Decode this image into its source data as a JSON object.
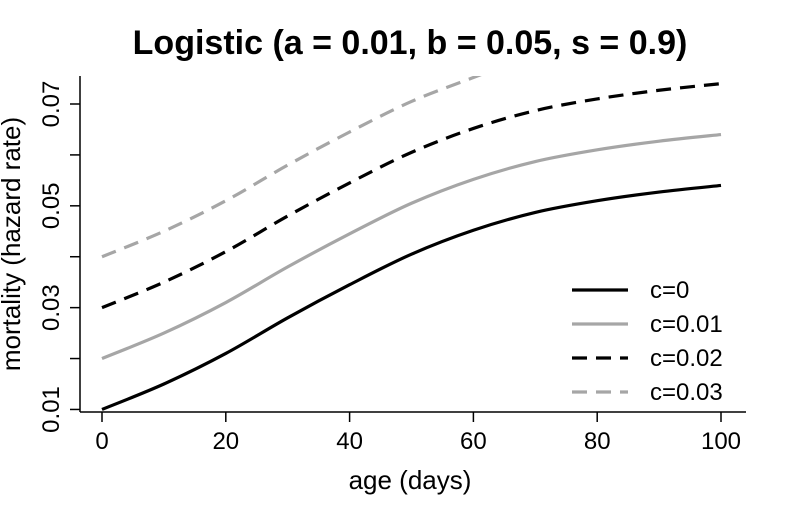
{
  "chart_data": {
    "type": "line",
    "title": "Logistic (a = 0.01, b = 0.05, s = 0.9)",
    "xlabel": "age (days)",
    "ylabel": "mortality (hazard rate)",
    "xlim": [
      0,
      100
    ],
    "ylim": [
      0.0095,
      0.0755
    ],
    "xticks": [
      0,
      20,
      40,
      60,
      80,
      100
    ],
    "yticks": [
      0.01,
      0.03,
      0.05,
      0.07
    ],
    "ytick_labels": [
      "0.01",
      "0.03",
      "0.05",
      "0.07"
    ],
    "yminor_ticks": [
      0.02,
      0.04,
      0.06
    ],
    "grid": false,
    "legend_position": "bottom-right",
    "series": [
      {
        "name": "c=0",
        "color": "#000000",
        "dash": "solid",
        "x": [
          0,
          10,
          20,
          30,
          40,
          50,
          60,
          70,
          80,
          90,
          100
        ],
        "y": [
          0.01,
          0.015,
          0.021,
          0.028,
          0.0345,
          0.0405,
          0.0452,
          0.0487,
          0.051,
          0.0527,
          0.054
        ]
      },
      {
        "name": "c=0.01",
        "color": "#a6a6a6",
        "dash": "solid",
        "x": [
          0,
          10,
          20,
          30,
          40,
          50,
          60,
          70,
          80,
          90,
          100
        ],
        "y": [
          0.02,
          0.025,
          0.031,
          0.038,
          0.0445,
          0.0505,
          0.0552,
          0.0587,
          0.061,
          0.0627,
          0.064
        ]
      },
      {
        "name": "c=0.02",
        "color": "#000000",
        "dash": "dashed",
        "x": [
          0,
          10,
          20,
          30,
          40,
          50,
          60,
          70,
          80,
          90,
          100
        ],
        "y": [
          0.03,
          0.035,
          0.041,
          0.048,
          0.0545,
          0.0605,
          0.0652,
          0.0687,
          0.071,
          0.0727,
          0.074
        ]
      },
      {
        "name": "c=0.03",
        "color": "#a6a6a6",
        "dash": "dashed",
        "x": [
          0,
          10,
          20,
          30,
          40,
          50,
          60,
          66
        ],
        "y": [
          0.04,
          0.045,
          0.051,
          0.058,
          0.0645,
          0.0705,
          0.0752,
          0.078
        ]
      }
    ]
  }
}
